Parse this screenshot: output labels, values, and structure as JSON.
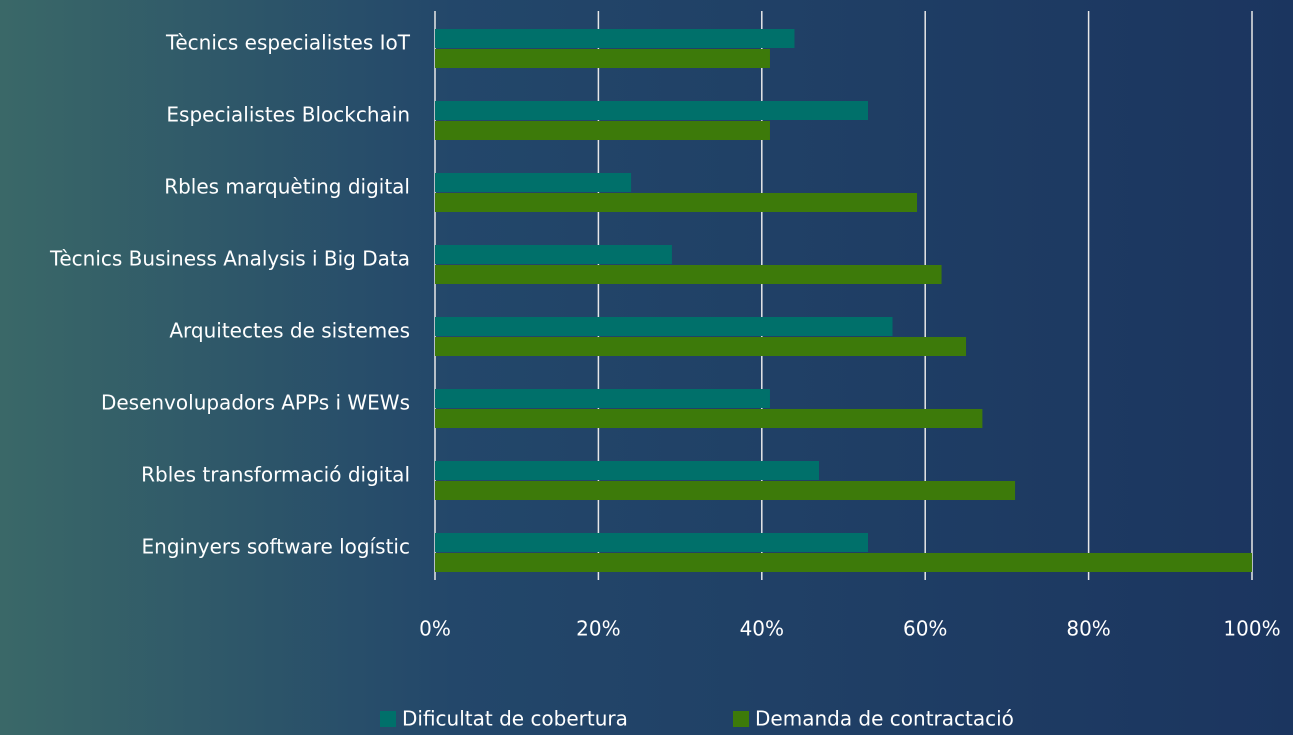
{
  "chart_data": {
    "type": "bar",
    "orientation": "horizontal",
    "categories": [
      "Tècnics especialistes IoT",
      "Especialistes Blockchain",
      "Rbles marquèting digital",
      "Tècnics Business Analysis i Big Data",
      "Arquitectes de sistemes",
      "Desenvolupadors APPs i WEWs",
      "Rbles transformació digital",
      "Enginyers software logístic"
    ],
    "series": [
      {
        "name": "Dificultat de cobertura",
        "color": "#00706a",
        "values": [
          44,
          53,
          24,
          29,
          56,
          41,
          47,
          53
        ]
      },
      {
        "name": "Demanda de contractació",
        "color": "#3d7a0a",
        "values": [
          41,
          41,
          59,
          62,
          65,
          67,
          71,
          100
        ]
      }
    ],
    "xlim": [
      0,
      100
    ],
    "xticks": [
      {
        "value": 0,
        "label": "0%"
      },
      {
        "value": 20,
        "label": "20%"
      },
      {
        "value": 40,
        "label": "40%"
      },
      {
        "value": 60,
        "label": "60%"
      },
      {
        "value": 80,
        "label": "80%"
      },
      {
        "value": 100,
        "label": "100%"
      }
    ],
    "grid": true,
    "legend": "bottom"
  }
}
